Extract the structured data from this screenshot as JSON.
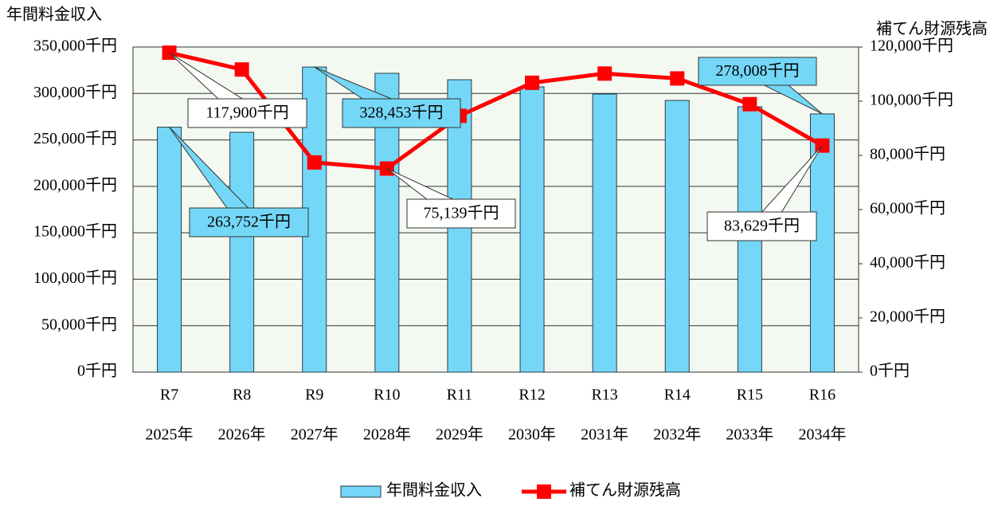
{
  "chart_data": {
    "type": "bar_line",
    "y_label": "年間料金収入",
    "y2_label": "補てん財源残高",
    "categories": [
      "R7",
      "R8",
      "R9",
      "R10",
      "R11",
      "R12",
      "R13",
      "R14",
      "R15",
      "R16"
    ],
    "category_years": [
      "2025年",
      "2026年",
      "2027年",
      "2028年",
      "2029年",
      "2030年",
      "2031年",
      "2032年",
      "2033年",
      "2034年"
    ],
    "series": [
      {
        "name": "年間料金収入",
        "type": "bar",
        "color": "#75d7f7",
        "values": [
          263752,
          258200,
          328453,
          321700,
          314800,
          307100,
          299400,
          292500,
          285700,
          278008
        ],
        "value_labels": [
          "263,752千円",
          null,
          "328,453千円",
          null,
          null,
          null,
          null,
          null,
          null,
          "278,008千円"
        ]
      },
      {
        "name": "補てん財源残高",
        "type": "line",
        "color": "#ff0000",
        "axis": "y2",
        "values": [
          117900,
          111700,
          77400,
          75139,
          94600,
          106800,
          110200,
          108400,
          98900,
          83629
        ],
        "value_labels": [
          "117,900千円",
          null,
          null,
          "75,139千円",
          null,
          null,
          null,
          null,
          null,
          "83,629千円"
        ]
      }
    ],
    "ylim": [
      0,
      350000
    ],
    "yticks": [
      {
        "value": 0,
        "label": "0千円"
      },
      {
        "value": 50000,
        "label": "50,000千円"
      },
      {
        "value": 100000,
        "label": "100,000千円"
      },
      {
        "value": 150000,
        "label": "150,000千円"
      },
      {
        "value": 200000,
        "label": "200,000千円"
      },
      {
        "value": 250000,
        "label": "250,000千円"
      },
      {
        "value": 300000,
        "label": "300,000千円"
      },
      {
        "value": 350000,
        "label": "350,000千円"
      }
    ],
    "y2lim": [
      0,
      120000
    ],
    "y2ticks": [
      {
        "value": 0,
        "label": "0千円"
      },
      {
        "value": 20000,
        "label": "20,000千円"
      },
      {
        "value": 40000,
        "label": "40,000千円"
      },
      {
        "value": 60000,
        "label": "60,000千円"
      },
      {
        "value": 80000,
        "label": "80,000千円"
      },
      {
        "value": 100000,
        "label": "100,000千円"
      },
      {
        "value": 120000,
        "label": "120,000千円"
      }
    ],
    "grid": true,
    "legend": "bottom"
  }
}
